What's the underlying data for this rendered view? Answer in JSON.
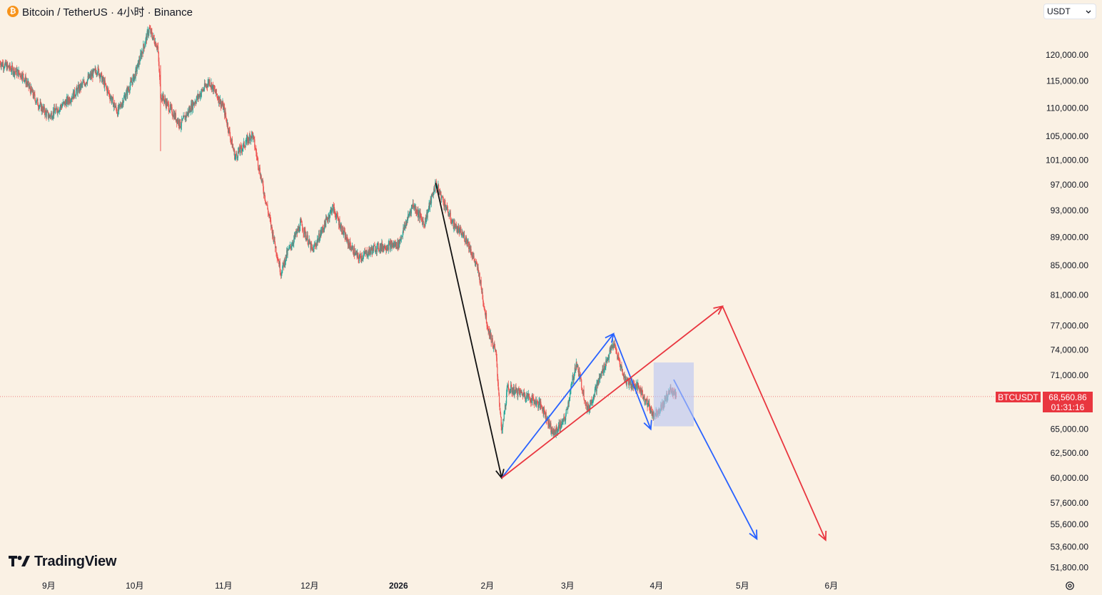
{
  "header": {
    "coin_symbol": "₿",
    "title": "Bitcoin / TetherUS · 4小时 · Binance"
  },
  "currency_select": {
    "value": "USDT",
    "icon": "chevron-down-icon"
  },
  "price_axis": {
    "ticks": [
      "120,000.00",
      "115,000.00",
      "110,000.00",
      "105,000.00",
      "101,000.00",
      "97,000.00",
      "93,000.00",
      "89,000.00",
      "85,000.00",
      "81,000.00",
      "77,000.00",
      "74,000.00",
      "71,000.00",
      "65,000.00",
      "62,500.00",
      "60,000.00",
      "57,600.00",
      "55,600.00",
      "53,600.00",
      "51,800.00"
    ],
    "scale": "log"
  },
  "time_axis": {
    "ticks": [
      "9月",
      "10月",
      "11月",
      "12月",
      "2026",
      "2月",
      "3月",
      "4月",
      "5月",
      "6月"
    ]
  },
  "current_price": {
    "symbol": "BTCUSDT",
    "price": "68,560.86",
    "countdown": "01:31:16",
    "value": 68560.86
  },
  "branding": {
    "name": "TradingView"
  },
  "settings_icon": "gear-icon",
  "colors": {
    "background": "#faf1e4",
    "up_candle": "#26a69a",
    "down_candle": "#ef5350",
    "price_tag": "#e9363f",
    "drawing_black": "#111111",
    "drawing_blue": "#2962ff",
    "drawing_red": "#e9363f",
    "highlight_box": "#b7c4f4"
  },
  "chart_data": {
    "type": "candlestick",
    "symbol": "BTCUSDT",
    "interval": "4小时",
    "exchange": "Binance",
    "y_scale": "log",
    "path": [
      [
        "2025-08-15",
        118500
      ],
      [
        "2025-08-23",
        116000
      ],
      [
        "2025-08-28",
        111000
      ],
      [
        "2025-09-01",
        108500
      ],
      [
        "2025-09-08",
        111500
      ],
      [
        "2025-09-14",
        115000
      ],
      [
        "2025-09-18",
        117200
      ],
      [
        "2025-09-25",
        109300
      ],
      [
        "2025-10-01",
        116000
      ],
      [
        "2025-10-06",
        125200
      ],
      [
        "2025-10-09",
        121500
      ],
      [
        "2025-10-10",
        112500
      ],
      [
        "2025-10-17",
        107000
      ],
      [
        "2025-10-21",
        110500
      ],
      [
        "2025-10-27",
        115000
      ],
      [
        "2025-11-01",
        110000
      ],
      [
        "2025-11-05",
        101500
      ],
      [
        "2025-11-11",
        105500
      ],
      [
        "2025-11-15",
        96000
      ],
      [
        "2025-11-21",
        84000
      ],
      [
        "2025-11-23",
        86500
      ],
      [
        "2025-11-28",
        91000
      ],
      [
        "2025-12-02",
        87000
      ],
      [
        "2025-12-09",
        93500
      ],
      [
        "2025-12-14",
        88500
      ],
      [
        "2025-12-18",
        86000
      ],
      [
        "2025-12-24",
        87500
      ],
      [
        "2026-01-01",
        88000
      ],
      [
        "2026-01-06",
        94000
      ],
      [
        "2026-01-10",
        91000
      ],
      [
        "2026-01-14",
        97200
      ],
      [
        "2026-01-20",
        91000
      ],
      [
        "2026-01-25",
        88500
      ],
      [
        "2026-01-29",
        84000
      ],
      [
        "2026-02-01",
        77000
      ],
      [
        "2026-02-04",
        73500
      ],
      [
        "2026-02-06",
        64500
      ],
      [
        "2026-02-08",
        69500
      ],
      [
        "2026-02-14",
        68800
      ],
      [
        "2026-02-20",
        67500
      ],
      [
        "2026-02-24",
        64500
      ],
      [
        "2026-02-28",
        66000
      ],
      [
        "2026-03-04",
        72500
      ],
      [
        "2026-03-08",
        67000
      ],
      [
        "2026-03-12",
        70500
      ],
      [
        "2026-03-17",
        74800
      ],
      [
        "2026-03-21",
        70500
      ],
      [
        "2026-03-26",
        69500
      ],
      [
        "2026-03-31",
        66500
      ],
      [
        "2026-04-03",
        67500
      ],
      [
        "2026-04-06",
        69500
      ],
      [
        "2026-04-08",
        68560
      ]
    ],
    "drawings": [
      {
        "type": "arrow",
        "color": "black",
        "from": [
          "2026-01-14",
          97300
        ],
        "to": [
          "2026-02-06",
          60000
        ]
      },
      {
        "type": "arrow",
        "color": "blue",
        "from": [
          "2026-02-06",
          60000
        ],
        "to": [
          "2026-03-17",
          76000
        ]
      },
      {
        "type": "arrow",
        "color": "blue",
        "from": [
          "2026-03-17",
          76000
        ],
        "to": [
          "2026-03-30",
          65000
        ]
      },
      {
        "type": "arrow",
        "color": "blue",
        "from": [
          "2026-04-07",
          70500
        ],
        "to": [
          "2026-05-06",
          54300
        ]
      },
      {
        "type": "arrow",
        "color": "red",
        "from": [
          "2026-02-06",
          60000
        ],
        "to": [
          "2026-04-24",
          79500
        ]
      },
      {
        "type": "arrow",
        "color": "red",
        "from": [
          "2026-04-24",
          79500
        ],
        "to": [
          "2026-05-30",
          54200
        ]
      },
      {
        "type": "rectangle",
        "color": "blue",
        "from": [
          "2026-03-31",
          72500
        ],
        "to": [
          "2026-04-14",
          65300
        ]
      }
    ],
    "current_price": 68560.86
  }
}
